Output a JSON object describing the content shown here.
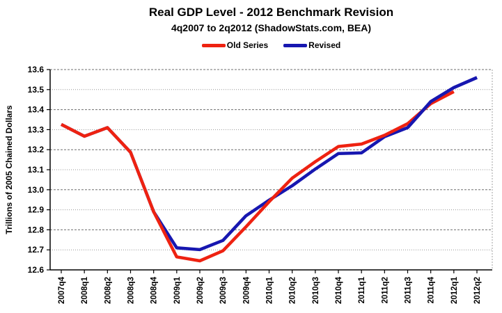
{
  "title": "Real GDP Level - 2012 Benchmark Revision",
  "subtitle": "4q2007 to 2q2012 (ShadowStats.com, BEA)",
  "ylabel": "Trillions of 2005 Chained Dollars",
  "legend": [
    {
      "label": "Old Series",
      "color": "#ee2211"
    },
    {
      "label": "Revised",
      "color": "#1717b0"
    }
  ],
  "chart_data": {
    "type": "line",
    "title": "Real GDP Level - 2012 Benchmark Revision",
    "subtitle": "4q2007 to 2q2012 (ShadowStats.com, BEA)",
    "ylabel": "Trillions of 2005 Chained Dollars",
    "ylim": [
      12.6,
      13.6
    ],
    "ytick_step": 0.1,
    "grid": "horizontal-dashed",
    "legend_position": "top-center",
    "x_labels_rotated_90": true,
    "categories": [
      "2007q4",
      "2008q1",
      "2008q2",
      "2008q3",
      "2008q4",
      "2009q1",
      "2009q2",
      "2009q3",
      "2009q4",
      "2010q1",
      "2010q2",
      "2010q3",
      "2010q4",
      "2011q1",
      "2011q2",
      "2011q3",
      "2011q4",
      "2012q1",
      "2012q2"
    ],
    "series": [
      {
        "name": "Old Series",
        "color": "#ee2211",
        "values": [
          13.326,
          13.267,
          13.31,
          13.187,
          12.89,
          12.665,
          12.645,
          12.695,
          12.815,
          12.94,
          13.058,
          13.14,
          13.216,
          13.228,
          13.272,
          13.33,
          13.43,
          13.49,
          null
        ]
      },
      {
        "name": "Revised",
        "color": "#1717b0",
        "values": [
          13.326,
          13.267,
          13.31,
          13.187,
          12.89,
          12.71,
          12.701,
          12.747,
          12.87,
          12.948,
          13.02,
          13.103,
          13.181,
          13.184,
          13.265,
          13.31,
          13.44,
          13.51,
          13.56
        ]
      }
    ],
    "notes": "Old and Revised series coincide from 2007q4 through 2008q4; Revised drawn on top from 2011q3 onward.",
    "revised_overlay_from_index": 15
  }
}
